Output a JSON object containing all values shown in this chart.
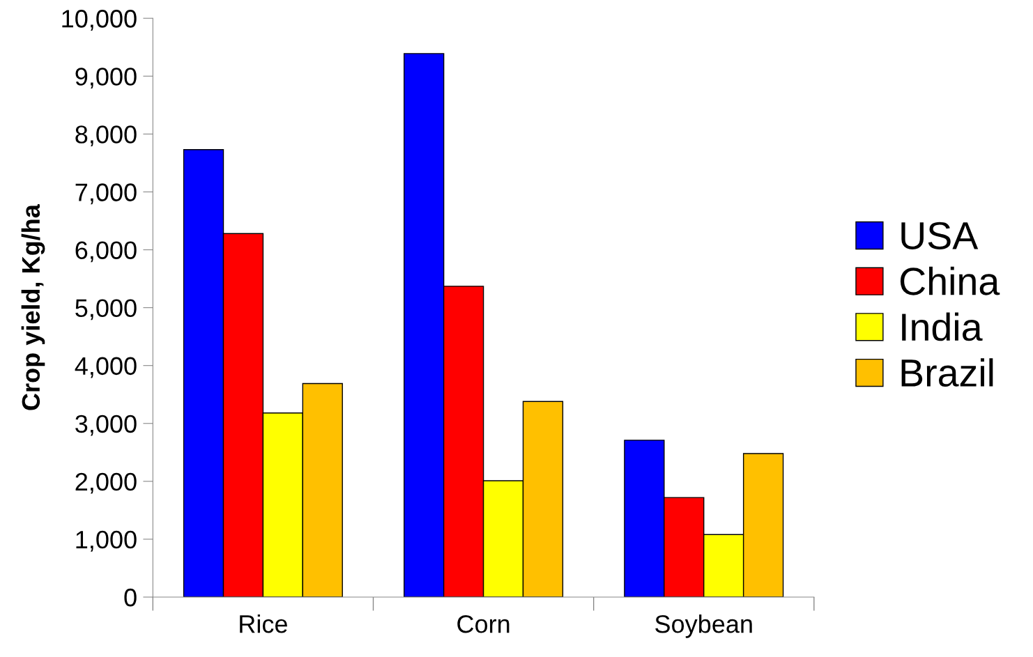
{
  "chart_data": {
    "type": "bar",
    "ylabel": "Crop yield, Kg/ha",
    "categories": [
      "Rice",
      "Corn",
      "Soybean"
    ],
    "series": [
      {
        "name": "USA",
        "color": "#0000ff",
        "values": [
          7730,
          9390,
          2710
        ]
      },
      {
        "name": "China",
        "color": "#ff0000",
        "values": [
          6280,
          5370,
          1720
        ]
      },
      {
        "name": "India",
        "color": "#ffff00",
        "values": [
          3180,
          2010,
          1080
        ]
      },
      {
        "name": "Brazil",
        "color": "#ffc000",
        "values": [
          3690,
          3380,
          2480
        ]
      }
    ],
    "ylim": [
      0,
      10000
    ],
    "yticks": [
      {
        "value": 0,
        "label": "0"
      },
      {
        "value": 1000,
        "label": "1,000"
      },
      {
        "value": 2000,
        "label": "2,000"
      },
      {
        "value": 3000,
        "label": "3,000"
      },
      {
        "value": 4000,
        "label": "4,000"
      },
      {
        "value": 5000,
        "label": "5,000"
      },
      {
        "value": 6000,
        "label": "6,000"
      },
      {
        "value": 7000,
        "label": "7,000"
      },
      {
        "value": 8000,
        "label": "8,000"
      },
      {
        "value": 9000,
        "label": "9,000"
      },
      {
        "value": 10000,
        "label": "10,000"
      }
    ],
    "grid": false,
    "legend": "right"
  }
}
